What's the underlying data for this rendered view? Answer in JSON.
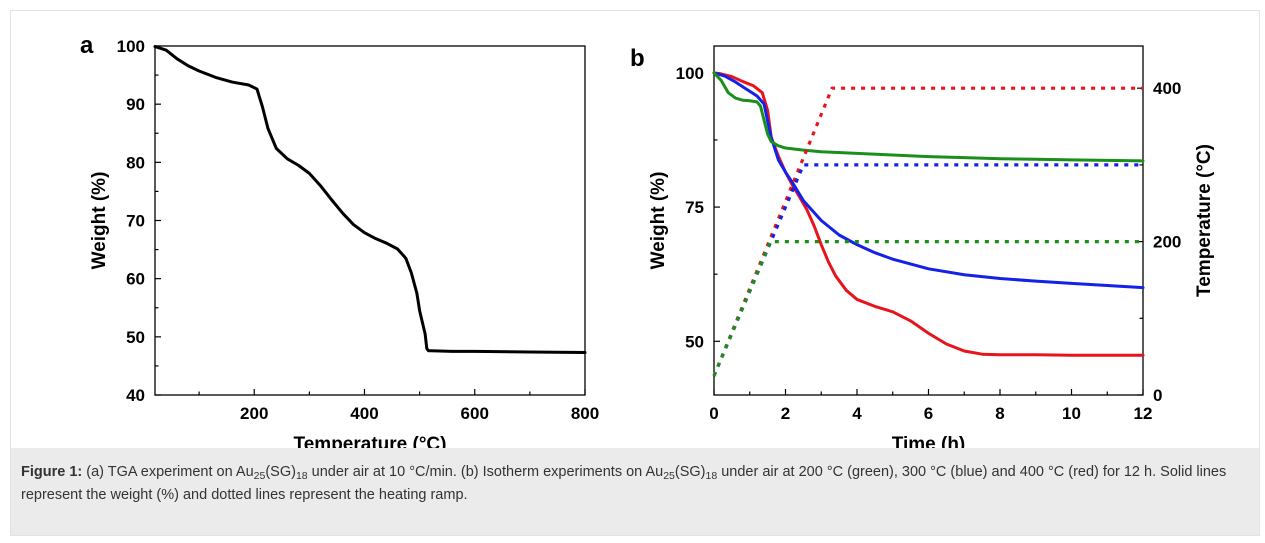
{
  "caption": {
    "lead": "Figure 1:",
    "parts": [
      " (a) TGA experiment on Au",
      "25",
      "(SG)",
      "18",
      " under air at 10 °C/min. (b) Isotherm experiments on Au",
      "25",
      "(SG)",
      "18",
      " under air at 200 °C (green), 300 °C (blue) and 400 °C (red) for 12 h. Solid lines represent the weight (%) and dotted lines represent the heating ramp."
    ]
  },
  "chart_data": [
    {
      "panel_label": "a",
      "type": "line",
      "xlabel": "Temperature (°C)",
      "ylabel": "Weight (%)",
      "xlim": [
        20,
        800
      ],
      "ylim": [
        40,
        100
      ],
      "xticks": [
        200,
        400,
        600,
        800
      ],
      "yticks": [
        40,
        50,
        60,
        70,
        80,
        90,
        100
      ],
      "grid": false,
      "series": [
        {
          "color": "#000000",
          "style": "solid",
          "x": [
            20,
            40,
            60,
            80,
            100,
            130,
            160,
            190,
            205,
            215,
            225,
            240,
            260,
            280,
            300,
            320,
            340,
            360,
            380,
            400,
            420,
            440,
            460,
            475,
            485,
            495,
            500,
            505,
            510,
            513,
            516,
            520,
            560,
            600,
            700,
            800
          ],
          "y": [
            99.9,
            99.3,
            97.8,
            96.6,
            95.7,
            94.6,
            93.8,
            93.3,
            92.6,
            89.5,
            85.8,
            82.4,
            80.6,
            79.5,
            78.1,
            76.0,
            73.6,
            71.3,
            69.3,
            67.9,
            66.9,
            66.1,
            65.1,
            63.5,
            61.0,
            57.5,
            54.5,
            52.5,
            50.5,
            48.0,
            47.6,
            47.6,
            47.5,
            47.5,
            47.4,
            47.3
          ]
        }
      ]
    },
    {
      "panel_label": "b",
      "type": "line",
      "xlabel": "Time (h)",
      "ylabel": "Weight (%)",
      "y2label": "Temperature (°C)",
      "xlim": [
        0,
        12
      ],
      "ylim": [
        40,
        105
      ],
      "y2lim": [
        0,
        455
      ],
      "xticks": [
        0,
        2,
        4,
        6,
        8,
        10,
        12
      ],
      "yticks": [
        50,
        75,
        100
      ],
      "y2ticks": [
        0,
        200,
        400
      ],
      "grid": false,
      "series": [
        {
          "color": "#e8141c",
          "style": "solid",
          "axis": "left",
          "x": [
            0,
            0.2,
            0.5,
            0.8,
            1.1,
            1.35,
            1.5,
            1.6,
            1.8,
            2.0,
            2.2,
            2.4,
            2.6,
            2.8,
            3.0,
            3.2,
            3.4,
            3.7,
            4.0,
            4.5,
            5.0,
            5.5,
            6.0,
            6.5,
            7.0,
            7.5,
            8.0,
            9.0,
            10,
            11,
            12
          ],
          "y": [
            100,
            99.8,
            99.3,
            98.4,
            97.6,
            96.3,
            93,
            88,
            84.5,
            81.5,
            79,
            76.8,
            74.5,
            71.5,
            68,
            64.8,
            62.2,
            59.5,
            57.8,
            56.5,
            55.5,
            53.8,
            51.5,
            49.5,
            48.2,
            47.6,
            47.5,
            47.5,
            47.4,
            47.4,
            47.4
          ]
        },
        {
          "color": "#1421e8",
          "style": "solid",
          "axis": "left",
          "x": [
            0,
            0.3,
            0.6,
            0.9,
            1.2,
            1.4,
            1.5,
            1.6,
            1.8,
            2.0,
            2.2,
            2.5,
            3.0,
            3.5,
            4.0,
            4.5,
            5.0,
            6.0,
            7.0,
            8.0,
            9.0,
            10.0,
            11.0,
            12.0
          ],
          "y": [
            100,
            99.4,
            98.3,
            97.0,
            95.7,
            94.2,
            91,
            88,
            83.8,
            81.5,
            79.5,
            76.2,
            72.5,
            69.8,
            68.0,
            66.5,
            65.3,
            63.5,
            62.4,
            61.7,
            61.2,
            60.8,
            60.4,
            60.0
          ]
        },
        {
          "color": "#1a8f1a",
          "style": "solid",
          "axis": "left",
          "x": [
            0,
            0.2,
            0.4,
            0.6,
            0.8,
            1.0,
            1.2,
            1.3,
            1.4,
            1.5,
            1.6,
            1.8,
            2.0,
            2.5,
            3.0,
            4.0,
            5.0,
            6.0,
            7.0,
            8.0,
            9.0,
            10.0,
            11.0,
            12.0
          ],
          "y": [
            100,
            98.6,
            96.3,
            95.3,
            94.9,
            94.8,
            94.6,
            93.8,
            91.2,
            88.6,
            87.2,
            86.4,
            86.0,
            85.6,
            85.3,
            85.0,
            84.7,
            84.4,
            84.2,
            84.0,
            83.9,
            83.8,
            83.7,
            83.6
          ]
        },
        {
          "color": "#e8141c",
          "style": "dotted",
          "axis": "right",
          "x": [
            0,
            3.3,
            12
          ],
          "y": [
            25,
            400,
            400
          ]
        },
        {
          "color": "#1421e8",
          "style": "dotted",
          "axis": "right",
          "x": [
            0,
            2.5,
            12
          ],
          "y": [
            25,
            300,
            300
          ]
        },
        {
          "color": "#1a8f1a",
          "style": "dotted",
          "axis": "right",
          "x": [
            0,
            1.58,
            12
          ],
          "y": [
            25,
            200,
            200
          ]
        }
      ]
    }
  ]
}
